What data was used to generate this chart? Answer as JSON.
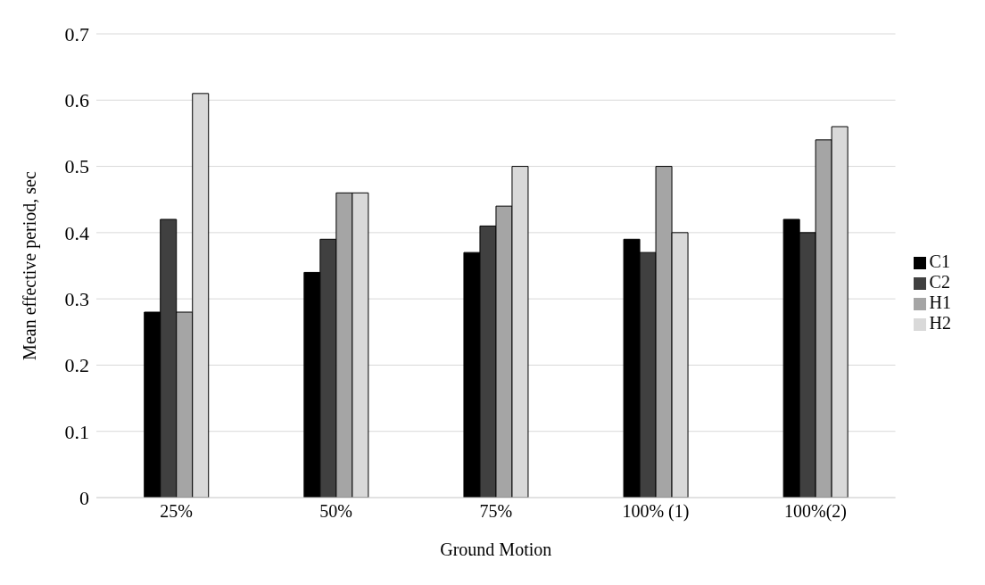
{
  "chart_data": {
    "type": "bar",
    "xlabel": "Ground Motion",
    "ylabel": "Mean effective period, sec",
    "categories": [
      "25%",
      "50%",
      "75%",
      "100% (1)",
      "100%(2)"
    ],
    "series": [
      {
        "name": "C1",
        "color": "#000000",
        "values": [
          0.28,
          0.34,
          0.37,
          0.39,
          0.42
        ]
      },
      {
        "name": "C2",
        "color": "#404040",
        "values": [
          0.42,
          0.39,
          0.41,
          0.37,
          0.4
        ]
      },
      {
        "name": "H1",
        "color": "#a5a5a5",
        "values": [
          0.28,
          0.46,
          0.44,
          0.5,
          0.54
        ]
      },
      {
        "name": "H2",
        "color": "#d9d9d9",
        "values": [
          0.61,
          0.46,
          0.5,
          0.4,
          0.56
        ]
      }
    ],
    "ylim": [
      0,
      0.7
    ],
    "yticks": [
      0,
      0.1,
      0.2,
      0.3,
      0.4,
      0.5,
      0.6,
      0.7
    ],
    "grid": "y",
    "legend": "right"
  }
}
